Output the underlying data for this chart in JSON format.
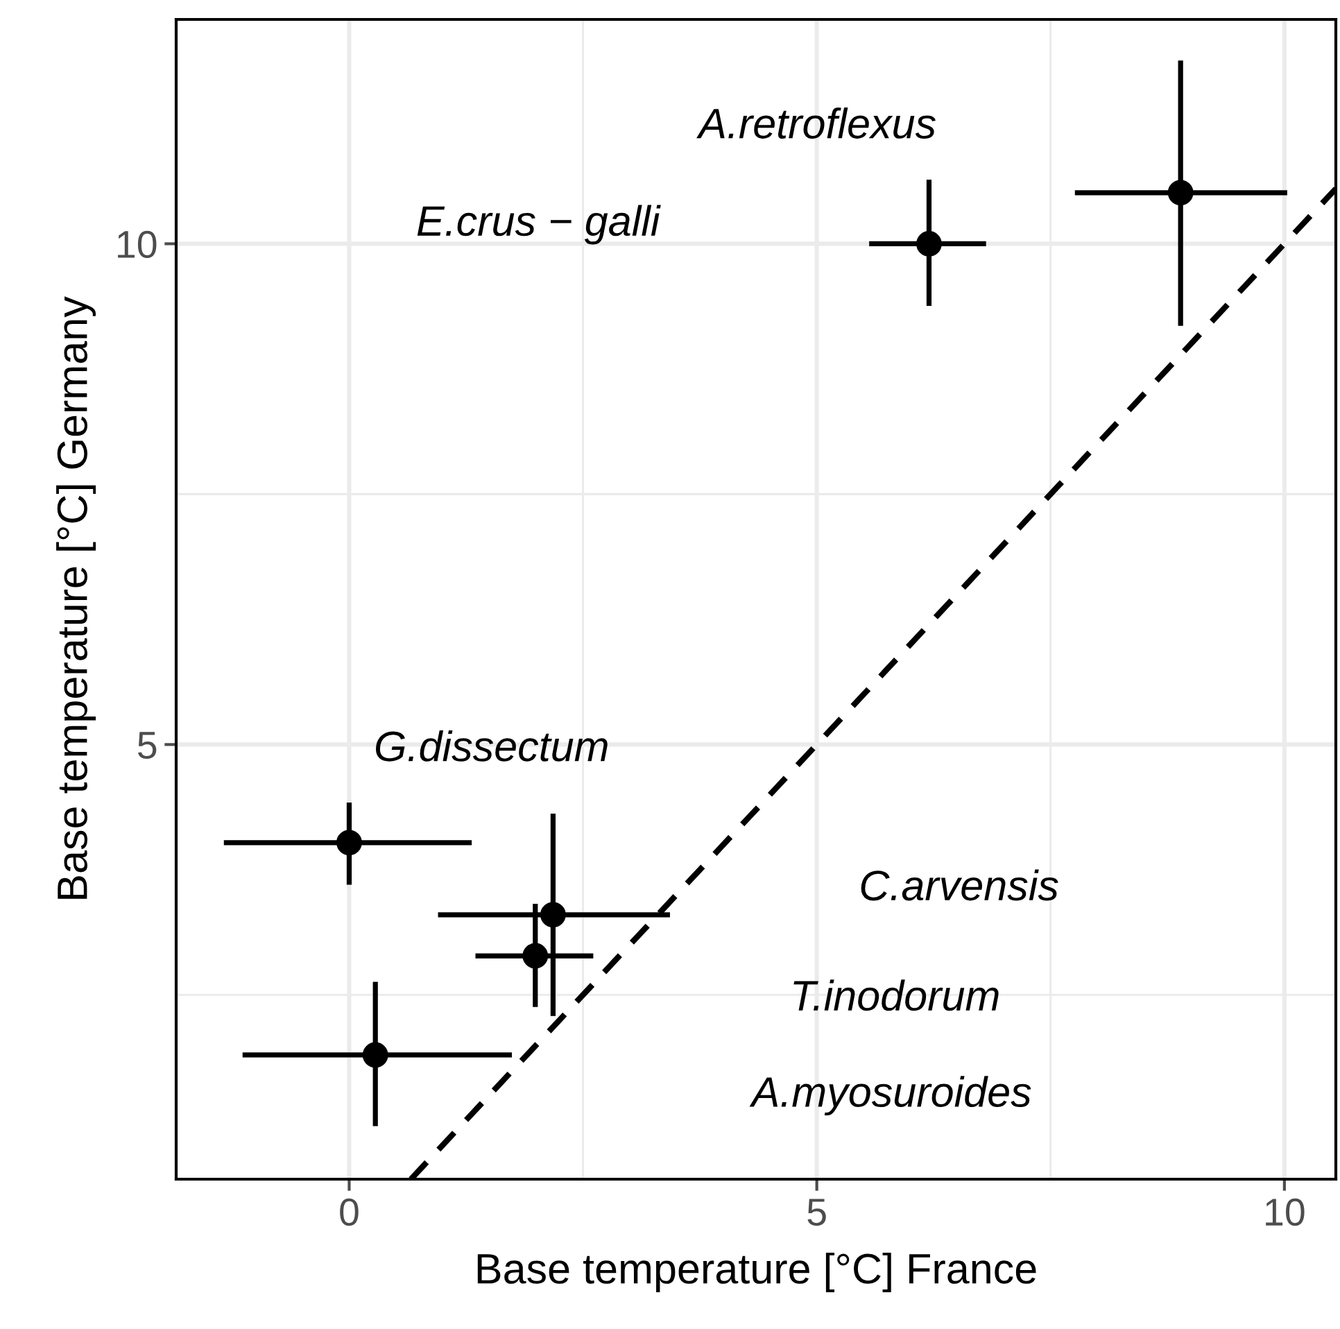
{
  "chart_data": {
    "type": "scatter",
    "xlabel": "Base temperature [°C] France",
    "ylabel": "Base temperature [°C] Germany",
    "xlim": [
      -1.85,
      10.55
    ],
    "ylim": [
      0.66,
      12.24
    ],
    "xticks": [
      0,
      5,
      10
    ],
    "yticks": [
      5,
      10
    ],
    "grid": true,
    "series": [
      {
        "color": "#000000",
        "marker": "circle",
        "x": [
          0,
          2.18,
          1.99,
          0.28,
          6.2,
          8.89
        ],
        "values": [
          4.02,
          3.3,
          2.89,
          1.9,
          10,
          10.51
        ],
        "errors": [
          [
            3.6,
            4.42
          ],
          [
            2.29,
            4.31
          ],
          [
            2.38,
            3.41
          ],
          [
            1.19,
            2.63
          ],
          [
            9.38,
            10.64
          ],
          [
            9.18,
            11.83
          ]
        ],
        "xerrors": [
          [
            -1.34,
            1.31
          ],
          [
            0.95,
            3.43
          ],
          [
            1.35,
            2.61
          ],
          [
            -1.14,
            1.74
          ],
          [
            5.56,
            6.81
          ],
          [
            7.76,
            10.03
          ]
        ]
      },
      {
        "type": "line",
        "color": "#000000",
        "line_style": "dashed",
        "x": [
          0.66,
          10.55
        ],
        "values": [
          0.66,
          10.55
        ]
      }
    ],
    "annotations": [
      "A.retroflexus",
      "E.crus − galli",
      "G.dissectum",
      "C.arvensis",
      "T.inodorum",
      "A.myosuroides"
    ]
  }
}
